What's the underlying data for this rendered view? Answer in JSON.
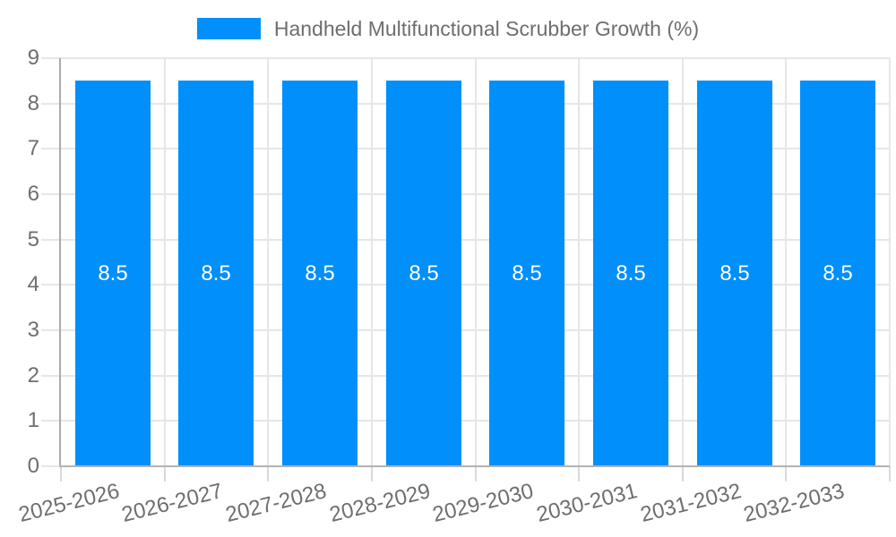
{
  "chart_data": {
    "type": "bar",
    "title": "Handheld Multifunctional Scrubber Growth (%)",
    "legend_label": "Handheld Multifunctional Scrubber Growth (%)",
    "legend_position": "top",
    "categories": [
      "2025-2026",
      "2026-2027",
      "2027-2028",
      "2028-2029",
      "2029-2030",
      "2030-2031",
      "2031-2032",
      "2032-2033"
    ],
    "series": [
      {
        "name": "Handheld Multifunctional Scrubber Growth (%)",
        "values": [
          8.5,
          8.5,
          8.5,
          8.5,
          8.5,
          8.5,
          8.5,
          8.5
        ]
      }
    ],
    "bar_value_labels": [
      "8.5",
      "8.5",
      "8.5",
      "8.5",
      "8.5",
      "8.5",
      "8.5",
      "8.5"
    ],
    "xlabel": "",
    "ylabel": "",
    "ylim": [
      0,
      9
    ],
    "yticks": [
      0,
      1,
      2,
      3,
      4,
      5,
      6,
      7,
      8,
      9
    ],
    "grid": true,
    "bar_label_position": "center",
    "colors": {
      "bar": "#008FFB",
      "bar_label": "#FFFFFF",
      "axis_text": "#6E6E6E",
      "grid_line": "#E6E6E6",
      "tick_line": "#D9D9D9",
      "y_axis_line": "#ABABAB",
      "x_axis_line": "#B3B3B3",
      "background": "#FFFFFF"
    }
  }
}
